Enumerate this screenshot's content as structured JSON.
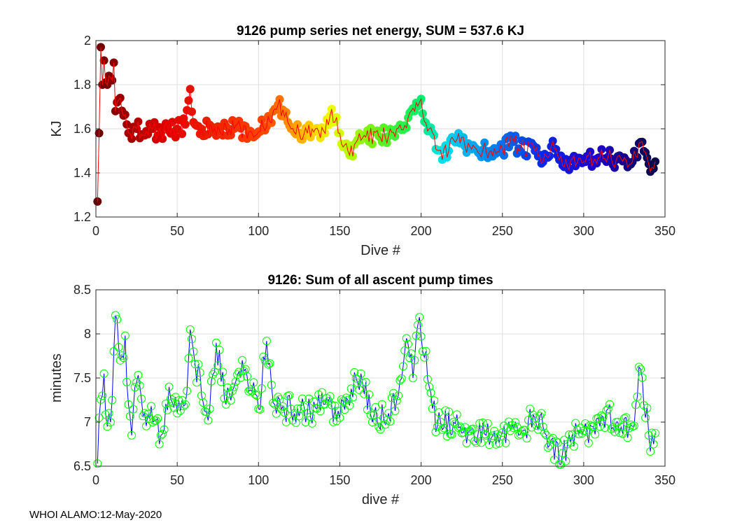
{
  "footer_text": "WHOI ALAMO:12-May-2020",
  "colors": {
    "line_top": "#ff0000",
    "line_bottom": "#0000ff",
    "marker_bottom": "#00ff00",
    "grid": "#dfdfdf",
    "axis": "#262626"
  },
  "chart_data": [
    {
      "type": "scatter",
      "title": "9126 pump series net energy, SUM = 537.6 KJ",
      "xlabel": "Dive #",
      "ylabel": "KJ",
      "xlim": [
        0,
        350
      ],
      "ylim": [
        1.2,
        2.0
      ],
      "xticks": [
        0,
        50,
        100,
        150,
        200,
        250,
        300,
        350
      ],
      "yticks": [
        1.2,
        1.4,
        1.6,
        1.8,
        2.0
      ],
      "ytick_labels": [
        "1.2",
        "1.4",
        "1.6",
        "1.8",
        "2"
      ],
      "grid": true,
      "marker": "filled circle colored by dive number (dark red to red, yellow, green, cyan, blue, dark navy)",
      "line": "red connecting line",
      "anchors": [
        [
          1,
          1.27
        ],
        [
          2,
          1.58
        ],
        [
          3,
          1.97
        ],
        [
          4,
          1.8
        ],
        [
          5,
          1.91
        ],
        [
          6,
          1.81
        ],
        [
          7,
          1.8
        ],
        [
          8,
          1.84
        ],
        [
          10,
          1.82
        ],
        [
          11,
          1.9
        ],
        [
          12,
          1.68
        ],
        [
          13,
          1.72
        ],
        [
          15,
          1.74
        ],
        [
          17,
          1.66
        ],
        [
          19,
          1.62
        ],
        [
          21,
          1.58
        ],
        [
          25,
          1.6
        ],
        [
          30,
          1.57
        ],
        [
          35,
          1.6
        ],
        [
          40,
          1.58
        ],
        [
          45,
          1.59
        ],
        [
          50,
          1.6
        ],
        [
          55,
          1.62
        ],
        [
          58,
          1.78
        ],
        [
          60,
          1.63
        ],
        [
          65,
          1.6
        ],
        [
          75,
          1.61
        ],
        [
          85,
          1.6
        ],
        [
          95,
          1.59
        ],
        [
          105,
          1.61
        ],
        [
          112,
          1.71
        ],
        [
          120,
          1.6
        ],
        [
          130,
          1.58
        ],
        [
          140,
          1.59
        ],
        [
          145,
          1.69
        ],
        [
          150,
          1.58
        ],
        [
          156,
          1.48
        ],
        [
          165,
          1.57
        ],
        [
          175,
          1.56
        ],
        [
          185,
          1.6
        ],
        [
          192,
          1.65
        ],
        [
          199,
          1.72
        ],
        [
          205,
          1.6
        ],
        [
          213,
          1.46
        ],
        [
          220,
          1.55
        ],
        [
          230,
          1.52
        ],
        [
          240,
          1.5
        ],
        [
          250,
          1.51
        ],
        [
          256,
          1.56
        ],
        [
          260,
          1.51
        ],
        [
          270,
          1.5
        ],
        [
          275,
          1.45
        ],
        [
          280,
          1.52
        ],
        [
          290,
          1.43
        ],
        [
          300,
          1.45
        ],
        [
          310,
          1.47
        ],
        [
          320,
          1.46
        ],
        [
          330,
          1.45
        ],
        [
          335,
          1.54
        ],
        [
          340,
          1.44
        ],
        [
          343,
          1.42
        ]
      ],
      "n_points": 344
    },
    {
      "type": "line",
      "title": "9126: Sum of all ascent pump times",
      "xlabel": "dive #",
      "ylabel": "minutes",
      "xlim": [
        0,
        350
      ],
      "ylim": [
        6.5,
        8.5
      ],
      "xticks": [
        0,
        50,
        100,
        150,
        200,
        250,
        300,
        350
      ],
      "yticks": [
        6.5,
        7.0,
        7.5,
        8.0,
        8.5
      ],
      "ytick_labels": [
        "6.5",
        "7",
        "7.5",
        "8",
        "8.5"
      ],
      "grid": true,
      "marker": "open green circle",
      "line": "blue connecting line",
      "anchors": [
        [
          1,
          6.53
        ],
        [
          2,
          7.05
        ],
        [
          4,
          7.3
        ],
        [
          5,
          7.55
        ],
        [
          7,
          6.95
        ],
        [
          10,
          7.25
        ],
        [
          12,
          8.21
        ],
        [
          15,
          7.7
        ],
        [
          18,
          7.98
        ],
        [
          20,
          7.2
        ],
        [
          22,
          6.85
        ],
        [
          25,
          7.45
        ],
        [
          30,
          7.1
        ],
        [
          35,
          7.0
        ],
        [
          40,
          6.85
        ],
        [
          45,
          7.4
        ],
        [
          50,
          7.1
        ],
        [
          55,
          7.2
        ],
        [
          58,
          8.05
        ],
        [
          60,
          7.8
        ],
        [
          65,
          7.3
        ],
        [
          70,
          7.15
        ],
        [
          74,
          7.9
        ],
        [
          80,
          7.2
        ],
        [
          85,
          7.4
        ],
        [
          92,
          7.6
        ],
        [
          100,
          7.15
        ],
        [
          105,
          7.92
        ],
        [
          110,
          7.2
        ],
        [
          120,
          7.15
        ],
        [
          130,
          7.1
        ],
        [
          140,
          7.2
        ],
        [
          150,
          7.05
        ],
        [
          155,
          7.25
        ],
        [
          163,
          7.55
        ],
        [
          170,
          7.0
        ],
        [
          180,
          7.1
        ],
        [
          186,
          7.3
        ],
        [
          191,
          7.95
        ],
        [
          195,
          7.5
        ],
        [
          199,
          8.19
        ],
        [
          205,
          7.4
        ],
        [
          210,
          6.95
        ],
        [
          220,
          7.0
        ],
        [
          230,
          6.9
        ],
        [
          240,
          6.85
        ],
        [
          250,
          6.88
        ],
        [
          260,
          6.85
        ],
        [
          270,
          7.05
        ],
        [
          280,
          6.8
        ],
        [
          286,
          6.52
        ],
        [
          290,
          6.75
        ],
        [
          300,
          6.9
        ],
        [
          310,
          6.95
        ],
        [
          315,
          7.15
        ],
        [
          320,
          7.0
        ],
        [
          330,
          6.95
        ],
        [
          335,
          7.6
        ],
        [
          340,
          6.85
        ],
        [
          343,
          6.75
        ]
      ],
      "n_points": 344
    }
  ]
}
